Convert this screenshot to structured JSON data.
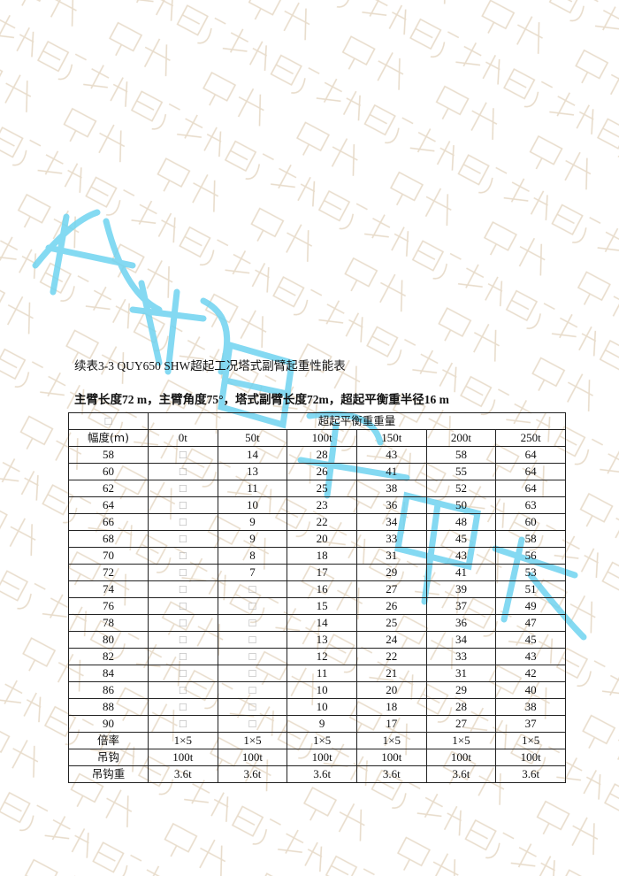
{
  "watermark": {
    "text": "成都巨象吊装",
    "faint_color": "#e8dccb",
    "accent_color": "#6fd3f0"
  },
  "caption": "续表3-3 QUY650 SHW超起工况塔式副臂起重性能表",
  "subtitle": "主臂长度72 m，主臂角度75°，塔式副臂长度72m，超起平衡重半径16 m",
  "table": {
    "corner": "□",
    "group_header": "超起平衡重重量",
    "radius_header": "幅度(m)",
    "columns": [
      "0t",
      "50t",
      "100t",
      "150t",
      "200t",
      "250t"
    ],
    "rows": [
      {
        "radius": "58",
        "values": [
          "□",
          "14",
          "28",
          "43",
          "58",
          "64"
        ]
      },
      {
        "radius": "60",
        "values": [
          "□",
          "13",
          "26",
          "41",
          "55",
          "64"
        ]
      },
      {
        "radius": "62",
        "values": [
          "□",
          "11",
          "25",
          "38",
          "52",
          "64"
        ]
      },
      {
        "radius": "64",
        "values": [
          "□",
          "10",
          "23",
          "36",
          "50",
          "63"
        ]
      },
      {
        "radius": "66",
        "values": [
          "□",
          "9",
          "22",
          "34",
          "48",
          "60"
        ]
      },
      {
        "radius": "68",
        "values": [
          "□",
          "9",
          "20",
          "33",
          "45",
          "58"
        ]
      },
      {
        "radius": "70",
        "values": [
          "□",
          "8",
          "18",
          "31",
          "43",
          "56"
        ]
      },
      {
        "radius": "72",
        "values": [
          "□",
          "7",
          "17",
          "29",
          "41",
          "53"
        ]
      },
      {
        "radius": "74",
        "values": [
          "□",
          "□",
          "16",
          "27",
          "39",
          "51"
        ]
      },
      {
        "radius": "76",
        "values": [
          "□",
          "□",
          "15",
          "26",
          "37",
          "49"
        ]
      },
      {
        "radius": "78",
        "values": [
          "□",
          "□",
          "14",
          "25",
          "36",
          "47"
        ]
      },
      {
        "radius": "80",
        "values": [
          "□",
          "□",
          "13",
          "24",
          "34",
          "45"
        ]
      },
      {
        "radius": "82",
        "values": [
          "□",
          "□",
          "12",
          "22",
          "33",
          "43"
        ]
      },
      {
        "radius": "84",
        "values": [
          "□",
          "□",
          "11",
          "21",
          "31",
          "42"
        ]
      },
      {
        "radius": "86",
        "values": [
          "□",
          "□",
          "10",
          "20",
          "29",
          "40"
        ]
      },
      {
        "radius": "88",
        "values": [
          "□",
          "□",
          "10",
          "18",
          "28",
          "38"
        ]
      },
      {
        "radius": "90",
        "values": [
          "□",
          "□",
          "9",
          "17",
          "27",
          "37"
        ]
      }
    ],
    "footer": [
      {
        "label": "倍率",
        "values": [
          "1×5",
          "1×5",
          "1×5",
          "1×5",
          "1×5",
          "1×5"
        ]
      },
      {
        "label": "吊钩",
        "values": [
          "100t",
          "100t",
          "100t",
          "100t",
          "100t",
          "100t"
        ]
      },
      {
        "label": "吊钩重",
        "values": [
          "3.6t",
          "3.6t",
          "3.6t",
          "3.6t",
          "3.6t",
          "3.6t"
        ]
      }
    ]
  }
}
